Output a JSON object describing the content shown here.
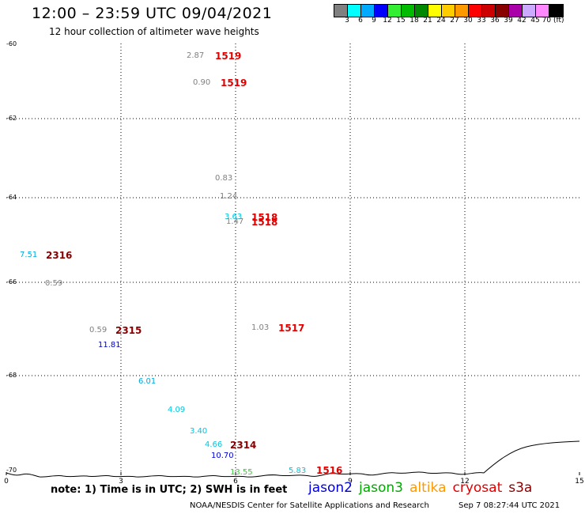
{
  "title": "12:00 – 23:59 UTC 09/04/2021",
  "subtitle": "12 hour collection of altimeter wave heights",
  "color_scale": {
    "colors": [
      "#808080",
      "#00ffff",
      "#00aaff",
      "#0000ff",
      "#33ee33",
      "#00bb00",
      "#008800",
      "#ffff00",
      "#ffcc00",
      "#ff9900",
      "#ff0000",
      "#cc0000",
      "#880000",
      "#aa00aa",
      "#ccaaff",
      "#ff88ff",
      "#000000"
    ],
    "labels": [
      "3",
      "6",
      "9",
      "12",
      "15",
      "18",
      "21",
      "24",
      "27",
      "30",
      "33",
      "36",
      "39",
      "42",
      "45",
      "70 (ft)"
    ]
  },
  "axes": {
    "lat_labels": [
      "-60",
      "-62",
      "-64",
      "-66",
      "-68",
      "-70"
    ],
    "lon_labels": [
      "0",
      "3",
      "6",
      "9",
      "12",
      "15"
    ]
  },
  "observations": [
    {
      "swh": "2.87",
      "swh_color": "#808080",
      "time": "1519",
      "time_color": "#e00000"
    },
    {
      "swh": "0.90",
      "swh_color": "#808080",
      "time": "1519",
      "time_color": "#e00000"
    },
    {
      "swh": "0.83",
      "swh_color": "#808080",
      "time": "",
      "time_color": "#e00000"
    },
    {
      "swh": "1.24",
      "swh_color": "#808080",
      "time": "",
      "time_color": "#e00000"
    },
    {
      "swh": "3.63",
      "swh_color": "#00c8e0",
      "time": "1518",
      "time_color": "#e00000"
    },
    {
      "swh": "1.47",
      "swh_color": "#808080",
      "time": "1518",
      "time_color": "#e00000"
    },
    {
      "swh": "7.51",
      "swh_color": "#00aadd",
      "time": "2316",
      "time_color": "#880000"
    },
    {
      "swh": "0.59",
      "swh_color": "#808080",
      "time": "",
      "time_color": "#880000"
    },
    {
      "swh": "0.59",
      "swh_color": "#808080",
      "time": "2315",
      "time_color": "#880000"
    },
    {
      "swh": "1.03",
      "swh_color": "#808080",
      "time": "1517",
      "time_color": "#e00000"
    },
    {
      "swh": "11.81",
      "swh_color": "#0000cc",
      "time": "",
      "time_color": "#880000"
    },
    {
      "swh": "6.01",
      "swh_color": "#00aadd",
      "time": "",
      "time_color": "#880000"
    },
    {
      "swh": "4.09",
      "swh_color": "#00c8e0",
      "time": "",
      "time_color": "#880000"
    },
    {
      "swh": "3.40",
      "swh_color": "#00c8e0",
      "time": "",
      "time_color": "#880000"
    },
    {
      "swh": "4.66",
      "swh_color": "#00c8e0",
      "time": "2314",
      "time_color": "#880000"
    },
    {
      "swh": "10.70",
      "swh_color": "#0000cc",
      "time": "",
      "time_color": "#880000"
    },
    {
      "swh": "13.55",
      "swh_color": "#33cc33",
      "time": "",
      "time_color": "#880000"
    },
    {
      "swh": "5.83",
      "swh_color": "#00c8e0",
      "time": "1516",
      "time_color": "#e00000"
    }
  ],
  "note": "note: 1) Time is in UTC; 2) SWH is in feet",
  "missions": [
    {
      "name": "jason2",
      "color": "#0000dd"
    },
    {
      "name": "jason3",
      "color": "#00aa00"
    },
    {
      "name": "altika",
      "color": "#ff9900"
    },
    {
      "name": "cryosat",
      "color": "#e00000"
    },
    {
      "name": "s3a",
      "color": "#880000"
    }
  ],
  "credit": "NOAA/NESDIS Center for Satellite Applications and Research",
  "timestamp": "Sep  7 08:27:44 UTC 2021"
}
